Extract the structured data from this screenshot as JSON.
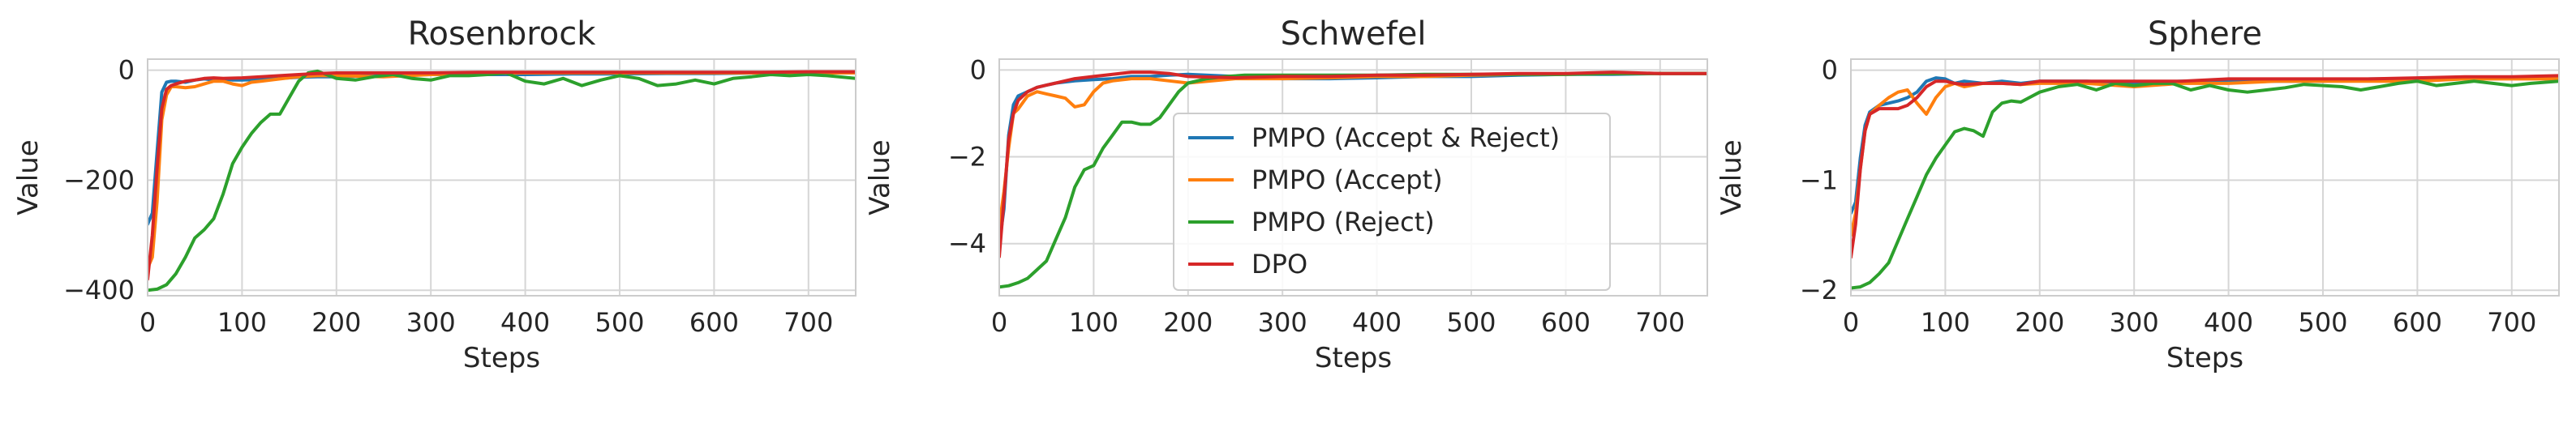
{
  "colors": {
    "PMPO (Accept & Reject)": "#1f77b4",
    "PMPO (Accept)": "#ff7f0e",
    "PMPO (Reject)": "#2ca02c",
    "DPO": "#d62728"
  },
  "chart_data": [
    {
      "type": "line",
      "title": "Rosenbrock",
      "xlabel": "Steps",
      "ylabel": "Value",
      "xlim": [
        0,
        750
      ],
      "ylim": [
        -410,
        20
      ],
      "xticks": [
        0,
        100,
        200,
        300,
        400,
        500,
        600,
        700
      ],
      "yticks": [
        -400,
        -200,
        0
      ],
      "ytick_labels": [
        "−400",
        "−200",
        "0"
      ],
      "grid": true,
      "series": [
        {
          "name": "PMPO (Accept & Reject)",
          "x": [
            0,
            5,
            10,
            15,
            20,
            25,
            30,
            40,
            50,
            60,
            70,
            80,
            90,
            100,
            120,
            140,
            160,
            180,
            200,
            250,
            300,
            350,
            400,
            450,
            500,
            550,
            600,
            650,
            700,
            750
          ],
          "y": [
            -280,
            -260,
            -150,
            -40,
            -22,
            -20,
            -20,
            -22,
            -18,
            -16,
            -18,
            -16,
            -18,
            -18,
            -17,
            -15,
            -13,
            -12,
            -12,
            -10,
            -8,
            -8,
            -8,
            -7,
            -7,
            -6,
            -6,
            -5,
            -5,
            -5
          ]
        },
        {
          "name": "PMPO (Accept)",
          "x": [
            0,
            5,
            10,
            15,
            20,
            25,
            30,
            40,
            50,
            60,
            70,
            80,
            90,
            100,
            110,
            120,
            140,
            160,
            180,
            200,
            250,
            300,
            350,
            400,
            450,
            500,
            550,
            600,
            650,
            700,
            750
          ],
          "y": [
            -360,
            -340,
            -240,
            -90,
            -45,
            -30,
            -30,
            -32,
            -30,
            -25,
            -20,
            -20,
            -25,
            -28,
            -22,
            -20,
            -16,
            -12,
            -10,
            -10,
            -12,
            -8,
            -6,
            -5,
            -5,
            -5,
            -5,
            -5,
            -5,
            -5,
            -5
          ]
        },
        {
          "name": "PMPO (Reject)",
          "x": [
            0,
            10,
            20,
            30,
            40,
            50,
            60,
            70,
            80,
            90,
            100,
            110,
            120,
            130,
            140,
            150,
            160,
            170,
            180,
            200,
            220,
            240,
            260,
            280,
            300,
            320,
            340,
            360,
            380,
            400,
            420,
            440,
            460,
            480,
            500,
            520,
            540,
            560,
            580,
            600,
            620,
            640,
            660,
            680,
            700,
            720,
            750
          ],
          "y": [
            -400,
            -398,
            -390,
            -370,
            -340,
            -305,
            -290,
            -270,
            -225,
            -170,
            -140,
            -115,
            -95,
            -80,
            -80,
            -50,
            -20,
            -5,
            -2,
            -15,
            -18,
            -12,
            -8,
            -15,
            -18,
            -10,
            -10,
            -8,
            -5,
            -20,
            -25,
            -15,
            -28,
            -18,
            -10,
            -15,
            -28,
            -25,
            -18,
            -25,
            -15,
            -12,
            -8,
            -10,
            -8,
            -10,
            -15
          ]
        },
        {
          "name": "DPO",
          "x": [
            0,
            5,
            10,
            15,
            20,
            25,
            30,
            40,
            50,
            60,
            70,
            80,
            100,
            120,
            140,
            160,
            180,
            200,
            250,
            300,
            350,
            400,
            450,
            500,
            550,
            600,
            650,
            700,
            750
          ],
          "y": [
            -380,
            -300,
            -180,
            -70,
            -35,
            -28,
            -25,
            -20,
            -18,
            -15,
            -14,
            -15,
            -14,
            -12,
            -10,
            -8,
            -6,
            -5,
            -5,
            -5,
            -4,
            -4,
            -4,
            -4,
            -4,
            -4,
            -4,
            -3,
            -3
          ]
        }
      ]
    },
    {
      "type": "line",
      "title": "Schwefel",
      "xlabel": "Steps",
      "ylabel": "Value",
      "xlim": [
        0,
        750
      ],
      "ylim": [
        -5.2,
        0.25
      ],
      "xticks": [
        0,
        100,
        200,
        300,
        400,
        500,
        600,
        700
      ],
      "yticks": [
        -4,
        -2,
        0
      ],
      "ytick_labels": [
        "−4",
        "−2",
        "0"
      ],
      "grid": true,
      "legend": {
        "position": "center",
        "entries": [
          "PMPO (Accept & Reject)",
          "PMPO (Accept)",
          "PMPO (Reject)",
          "DPO"
        ]
      },
      "series": [
        {
          "name": "PMPO (Accept & Reject)",
          "x": [
            0,
            5,
            10,
            15,
            20,
            30,
            40,
            50,
            60,
            80,
            100,
            120,
            140,
            160,
            180,
            200,
            250,
            300,
            350,
            400,
            450,
            500,
            550,
            600,
            650,
            700,
            750
          ],
          "y": [
            -4.0,
            -3.2,
            -1.5,
            -0.8,
            -0.6,
            -0.5,
            -0.4,
            -0.35,
            -0.3,
            -0.25,
            -0.22,
            -0.2,
            -0.15,
            -0.15,
            -0.12,
            -0.1,
            -0.15,
            -0.2,
            -0.2,
            -0.18,
            -0.15,
            -0.15,
            -0.12,
            -0.1,
            -0.1,
            -0.08,
            -0.08
          ]
        },
        {
          "name": "PMPO (Accept)",
          "x": [
            0,
            5,
            10,
            15,
            20,
            30,
            40,
            50,
            60,
            70,
            80,
            90,
            100,
            110,
            120,
            140,
            160,
            180,
            200,
            250,
            300,
            350,
            400,
            450,
            500,
            550,
            600,
            650,
            700,
            750
          ],
          "y": [
            -3.6,
            -2.8,
            -1.8,
            -1.0,
            -0.9,
            -0.6,
            -0.5,
            -0.55,
            -0.6,
            -0.65,
            -0.85,
            -0.8,
            -0.5,
            -0.3,
            -0.25,
            -0.2,
            -0.2,
            -0.25,
            -0.3,
            -0.2,
            -0.2,
            -0.18,
            -0.15,
            -0.15,
            -0.12,
            -0.1,
            -0.1,
            -0.08,
            -0.08,
            -0.08
          ]
        },
        {
          "name": "PMPO (Reject)",
          "x": [
            0,
            10,
            20,
            30,
            40,
            50,
            60,
            70,
            80,
            90,
            100,
            110,
            120,
            130,
            140,
            150,
            160,
            170,
            180,
            190,
            200,
            220,
            240,
            260,
            280,
            300,
            350,
            400,
            450,
            500,
            550,
            600,
            650,
            700,
            750
          ],
          "y": [
            -5.0,
            -4.97,
            -4.9,
            -4.8,
            -4.6,
            -4.4,
            -3.9,
            -3.4,
            -2.7,
            -2.3,
            -2.2,
            -1.8,
            -1.5,
            -1.2,
            -1.2,
            -1.25,
            -1.25,
            -1.1,
            -0.8,
            -0.5,
            -0.3,
            -0.2,
            -0.15,
            -0.12,
            -0.12,
            -0.12,
            -0.12,
            -0.12,
            -0.1,
            -0.1,
            -0.1,
            -0.1,
            -0.08,
            -0.08,
            -0.08
          ]
        },
        {
          "name": "DPO",
          "x": [
            0,
            5,
            10,
            15,
            20,
            30,
            40,
            50,
            60,
            80,
            100,
            120,
            140,
            160,
            180,
            200,
            250,
            300,
            350,
            400,
            450,
            500,
            550,
            600,
            650,
            700,
            750
          ],
          "y": [
            -4.3,
            -3.0,
            -1.6,
            -1.0,
            -0.7,
            -0.5,
            -0.4,
            -0.35,
            -0.3,
            -0.2,
            -0.15,
            -0.1,
            -0.05,
            -0.05,
            -0.08,
            -0.15,
            -0.18,
            -0.15,
            -0.15,
            -0.12,
            -0.12,
            -0.1,
            -0.08,
            -0.08,
            -0.05,
            -0.08,
            -0.08
          ]
        }
      ]
    },
    {
      "type": "line",
      "title": "Sphere",
      "xlabel": "Steps",
      "ylabel": "Value",
      "xlim": [
        0,
        750
      ],
      "ylim": [
        -2.05,
        0.1
      ],
      "xticks": [
        0,
        100,
        200,
        300,
        400,
        500,
        600,
        700
      ],
      "yticks": [
        -2,
        -1,
        0
      ],
      "ytick_labels": [
        "−2",
        "−1",
        "0"
      ],
      "grid": true,
      "series": [
        {
          "name": "PMPO (Accept & Reject)",
          "x": [
            0,
            5,
            10,
            15,
            20,
            30,
            40,
            50,
            60,
            70,
            80,
            90,
            100,
            110,
            120,
            140,
            160,
            180,
            200,
            250,
            300,
            350,
            400,
            450,
            500,
            550,
            600,
            650,
            700,
            750
          ],
          "y": [
            -1.3,
            -1.2,
            -0.8,
            -0.5,
            -0.38,
            -0.32,
            -0.3,
            -0.28,
            -0.25,
            -0.2,
            -0.1,
            -0.07,
            -0.08,
            -0.12,
            -0.1,
            -0.12,
            -0.1,
            -0.12,
            -0.1,
            -0.1,
            -0.12,
            -0.1,
            -0.1,
            -0.1,
            -0.1,
            -0.08,
            -0.08,
            -0.07,
            -0.07,
            -0.06
          ]
        },
        {
          "name": "PMPO (Accept)",
          "x": [
            0,
            5,
            10,
            15,
            20,
            30,
            40,
            50,
            60,
            70,
            80,
            90,
            100,
            110,
            120,
            140,
            160,
            180,
            200,
            250,
            300,
            350,
            400,
            450,
            500,
            550,
            600,
            650,
            700,
            750
          ],
          "y": [
            -1.5,
            -1.3,
            -0.9,
            -0.55,
            -0.4,
            -0.32,
            -0.25,
            -0.2,
            -0.18,
            -0.3,
            -0.4,
            -0.25,
            -0.15,
            -0.12,
            -0.15,
            -0.12,
            -0.12,
            -0.13,
            -0.12,
            -0.12,
            -0.15,
            -0.12,
            -0.12,
            -0.1,
            -0.1,
            -0.1,
            -0.1,
            -0.08,
            -0.08,
            -0.08
          ]
        },
        {
          "name": "PMPO (Reject)",
          "x": [
            0,
            10,
            20,
            30,
            40,
            50,
            60,
            70,
            80,
            90,
            100,
            110,
            120,
            130,
            140,
            150,
            160,
            170,
            180,
            200,
            220,
            240,
            260,
            280,
            300,
            320,
            340,
            360,
            380,
            400,
            420,
            440,
            460,
            480,
            500,
            520,
            540,
            560,
            580,
            600,
            620,
            640,
            660,
            680,
            700,
            720,
            750
          ],
          "y": [
            -1.98,
            -1.97,
            -1.93,
            -1.85,
            -1.75,
            -1.55,
            -1.35,
            -1.15,
            -0.95,
            -0.8,
            -0.68,
            -0.56,
            -0.53,
            -0.55,
            -0.6,
            -0.38,
            -0.3,
            -0.28,
            -0.29,
            -0.2,
            -0.15,
            -0.13,
            -0.18,
            -0.12,
            -0.14,
            -0.12,
            -0.12,
            -0.18,
            -0.14,
            -0.18,
            -0.2,
            -0.18,
            -0.16,
            -0.13,
            -0.14,
            -0.15,
            -0.18,
            -0.15,
            -0.12,
            -0.1,
            -0.14,
            -0.12,
            -0.1,
            -0.12,
            -0.14,
            -0.12,
            -0.1
          ]
        },
        {
          "name": "DPO",
          "x": [
            0,
            5,
            10,
            15,
            20,
            30,
            40,
            50,
            60,
            70,
            80,
            90,
            100,
            110,
            120,
            140,
            160,
            180,
            200,
            250,
            300,
            350,
            400,
            450,
            500,
            550,
            600,
            650,
            700,
            750
          ],
          "y": [
            -1.7,
            -1.4,
            -0.9,
            -0.55,
            -0.4,
            -0.35,
            -0.35,
            -0.35,
            -0.32,
            -0.25,
            -0.15,
            -0.1,
            -0.1,
            -0.12,
            -0.13,
            -0.12,
            -0.12,
            -0.13,
            -0.1,
            -0.1,
            -0.1,
            -0.1,
            -0.08,
            -0.08,
            -0.08,
            -0.08,
            -0.07,
            -0.06,
            -0.06,
            -0.05
          ]
        }
      ]
    }
  ]
}
